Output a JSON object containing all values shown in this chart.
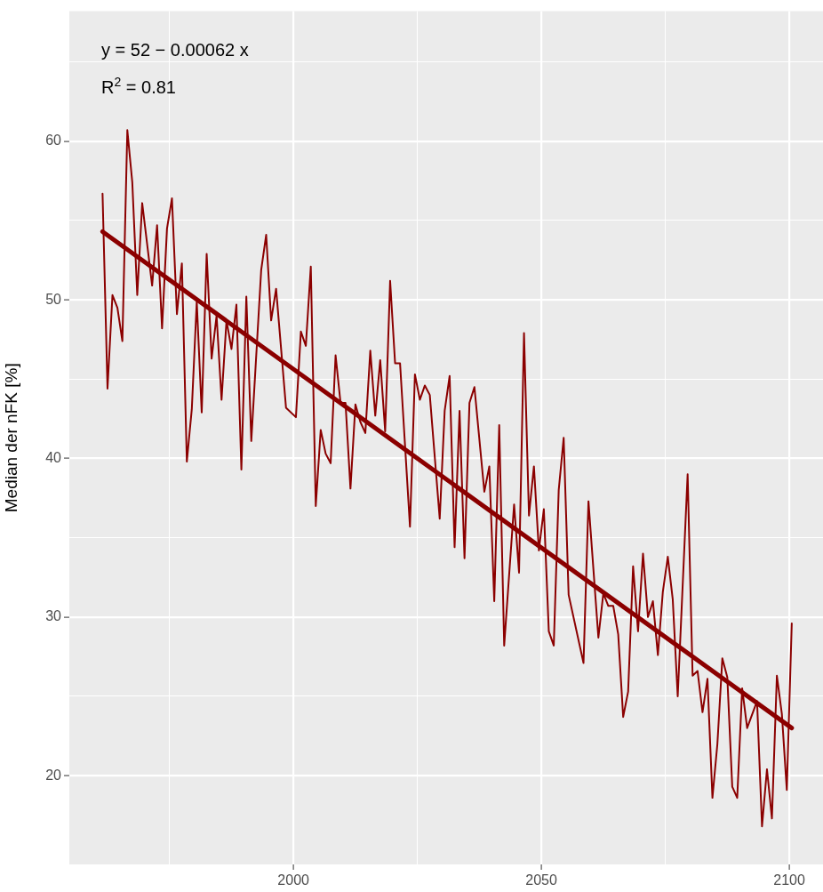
{
  "chart_data": {
    "type": "line",
    "ylabel": "Median der nFK [%]",
    "annotations": [
      "y = 52 − 0.00062 x",
      "R$^{2}$ = 0.81"
    ],
    "xlim": [
      1954.8,
      2106.8
    ],
    "ylim": [
      14.4,
      68.2
    ],
    "xticks": [
      {
        "value": 1975,
        "label": null
      },
      2000,
      {
        "value": 2025,
        "label": null
      },
      2050,
      {
        "value": 2075,
        "label": null
      },
      2100
    ],
    "yticks": [
      20,
      {
        "value": 25,
        "label": null
      },
      30,
      {
        "value": 35,
        "label": null
      },
      40,
      {
        "value": 45,
        "label": null
      },
      50,
      {
        "value": 55,
        "label": null
      },
      60,
      {
        "value": 65,
        "label": null
      }
    ],
    "grid": true,
    "legend": false,
    "marker": "none",
    "line_style": "solid",
    "series": [
      {
        "color": "#8b0000",
        "x": [
          1961.5,
          1962.5,
          1963.5,
          1964.5,
          1965.5,
          1966.5,
          1967.5,
          1968.5,
          1969.5,
          1971.5,
          1972.5,
          1973.5,
          1974.5,
          1975.5,
          1976.5,
          1977.5,
          1978.5,
          1979.5,
          1980.5,
          1981.5,
          1982.5,
          1983.5,
          1984.5,
          1985.5,
          1986.5,
          1987.5,
          1988.5,
          1989.5,
          1990.5,
          1991.5,
          1993.5,
          1994.5,
          1995.5,
          1996.5,
          1998.5,
          2000.5,
          2001.5,
          2002.5,
          2003.5,
          2004.5,
          2005.5,
          2006.5,
          2007.5,
          2008.5,
          2009.5,
          2010.5,
          2011.5,
          2012.5,
          2013.5,
          2014.5,
          2015.5,
          2016.5,
          2017.5,
          2018.5,
          2019.5,
          2020.5,
          2021.5,
          2023.5,
          2024.5,
          2025.5,
          2026.5,
          2027.5,
          2029.5,
          2030.5,
          2031.5,
          2032.5,
          2033.5,
          2034.5,
          2035.5,
          2036.5,
          2038.5,
          2039.5,
          2040.5,
          2041.5,
          2042.5,
          2044.5,
          2045.5,
          2046.5,
          2047.5,
          2048.5,
          2049.5,
          2050.5,
          2051.5,
          2052.5,
          2053.5,
          2054.5,
          2055.5,
          2058.5,
          2059.5,
          2061.5,
          2062.5,
          2063.5,
          2064.5,
          2065.5,
          2066.5,
          2067.5,
          2068.5,
          2069.5,
          2070.5,
          2071.5,
          2072.5,
          2073.5,
          2074.5,
          2075.5,
          2076.5,
          2077.5,
          2079.5,
          2080.5,
          2081.5,
          2082.5,
          2083.5,
          2084.5,
          2085.5,
          2086.5,
          2087.5,
          2088.5,
          2089.5,
          2090.5,
          2091.5,
          2093.5,
          2094.5,
          2095.5,
          2096.5,
          2097.5,
          2098.5,
          2099.5,
          2100.5
        ],
        "values": [
          56.7,
          44.4,
          50.3,
          49.5,
          47.4,
          60.7,
          57.4,
          50.3,
          56.1,
          50.9,
          54.7,
          48.2,
          54.5,
          56.4,
          49.1,
          52.3,
          39.8,
          43.1,
          49.9,
          42.9,
          52.9,
          46.3,
          49.0,
          43.7,
          48.7,
          46.9,
          49.7,
          39.3,
          50.2,
          41.1,
          51.9,
          54.1,
          48.7,
          50.7,
          43.2,
          42.6,
          48.0,
          47.1,
          52.1,
          37.0,
          41.8,
          40.3,
          39.7,
          46.5,
          43.5,
          43.5,
          38.1,
          43.4,
          42.3,
          41.6,
          46.8,
          42.7,
          46.2,
          41.7,
          51.2,
          46.0,
          46.0,
          35.7,
          45.3,
          43.7,
          44.6,
          44.0,
          36.2,
          43.0,
          45.2,
          34.4,
          43.0,
          33.7,
          43.5,
          44.5,
          37.9,
          39.5,
          31.0,
          42.1,
          28.2,
          37.1,
          32.8,
          47.9,
          36.4,
          39.5,
          34.2,
          36.8,
          29.1,
          28.2,
          38.0,
          41.3,
          31.4,
          27.1,
          37.3,
          28.7,
          31.5,
          30.7,
          30.7,
          28.9,
          23.7,
          25.3,
          33.2,
          29.1,
          34.0,
          30.0,
          31.0,
          27.6,
          31.6,
          33.8,
          31.1,
          25.0,
          39.0,
          26.3,
          26.6,
          24.0,
          26.1,
          18.6,
          22.0,
          27.4,
          26.2,
          19.3,
          18.6,
          25.5,
          23.0,
          24.7,
          16.8,
          20.4,
          17.3,
          26.3,
          23.9,
          19.1,
          29.6
        ]
      },
      {
        "color": "#8b0000",
        "x": [
          1961.5,
          2100.5
        ],
        "values": [
          54.3,
          23.0
        ]
      }
    ]
  }
}
